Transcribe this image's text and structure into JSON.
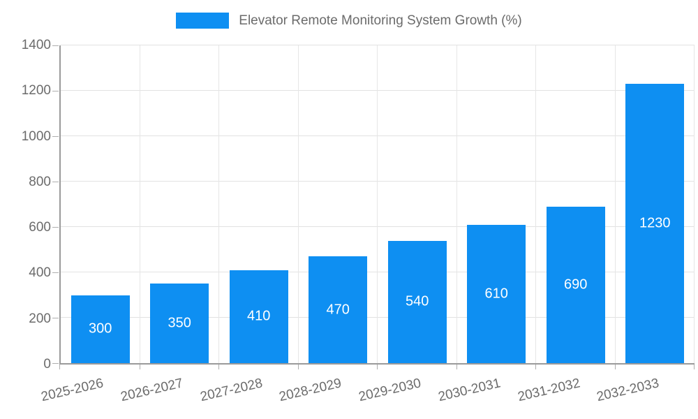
{
  "legend": {
    "label": "Elevator Remote Monitoring System Growth (%)"
  },
  "colors": {
    "bar": "#0e8ff2",
    "value_label": "#ffffff",
    "axis_text": "#6b6b6b",
    "gridline": "#e2e2e2",
    "axis_line": "#9a9a9a"
  },
  "chart_data": {
    "type": "bar",
    "title": "Elevator Remote Monitoring System Growth (%)",
    "categories": [
      "2025-2026",
      "2026-2027",
      "2027-2028",
      "2028-2029",
      "2029-2030",
      "2030-2031",
      "2031-2032",
      "2032-2033"
    ],
    "series": [
      {
        "name": "Elevator Remote Monitoring System Growth (%)",
        "values": [
          300,
          350,
          410,
          470,
          540,
          610,
          690,
          1230
        ]
      }
    ],
    "value_labels": [
      "300",
      "350",
      "410",
      "470",
      "540",
      "610",
      "690",
      "1230"
    ],
    "xlabel": "",
    "ylabel": "",
    "ylim": [
      0,
      1400
    ],
    "yticks": [
      0,
      200,
      400,
      600,
      800,
      1000,
      1200,
      1400
    ],
    "grid": true,
    "legend_position": "top"
  }
}
